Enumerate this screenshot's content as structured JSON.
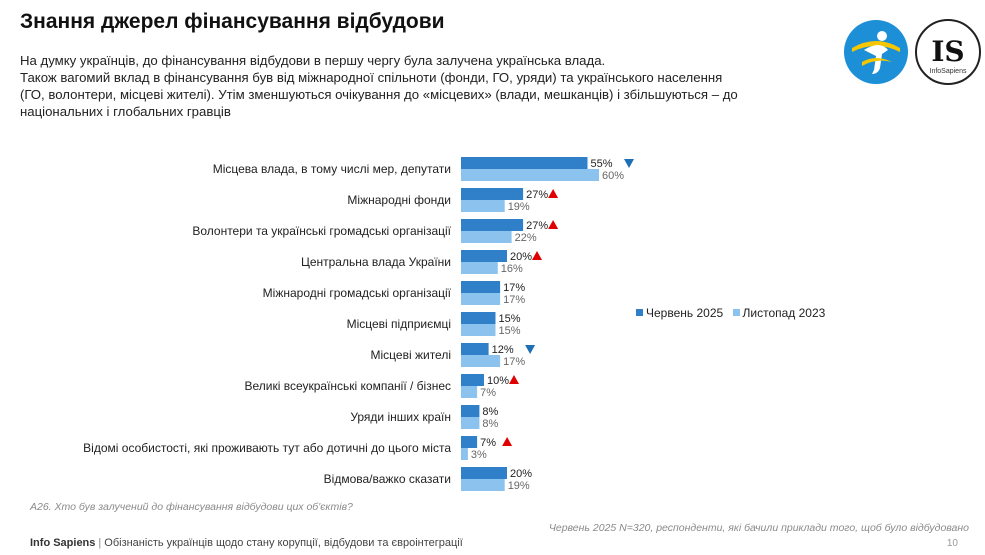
{
  "title": "Знання джерел фінансування відбудови",
  "subtitle_lines": [
    "На думку українців, до фінансування відбудови в першу чергу була залучена українська влада.",
    "Також вагомий вклад в фінансування був від міжнародної спільноти (фонди, ГО, уряди) та українського населення",
    "(ГО, волонтери, місцеві жителі). Утім зменшуються очікування до «місцевих» (влади, мешканців) і збільшуються – до",
    "національних і глобальних гравців"
  ],
  "logos": {
    "logo1_icon": "figure-in-circle-logo-icon",
    "logo2_text": "IS",
    "logo2_subtext": "InfoSapiens"
  },
  "chart_data": {
    "type": "bar",
    "orientation": "horizontal",
    "categories": [
      "Місцева влада, в тому числі мер, депутати",
      "Міжнародні фонди",
      "Волонтери та українські громадські організації",
      "Центральна влада України",
      "Міжнародні громадські організації",
      "Місцеві підприємці",
      "Місцеві жителі",
      "Великі всеукраїнські компанії / бізнес",
      "Уряди інших країн",
      "Відомі особистості, які проживають тут або дотичні до цього міста",
      "Відмова/важко сказати"
    ],
    "series": [
      {
        "name": "Червень 2025",
        "color": "#2f80c8",
        "values": [
          55,
          27,
          27,
          20,
          17,
          15,
          12,
          10,
          8,
          7,
          20
        ]
      },
      {
        "name": "Листопад 2023",
        "color": "#8cc3ee",
        "values": [
          60,
          19,
          22,
          16,
          17,
          15,
          17,
          7,
          8,
          3,
          19
        ]
      }
    ],
    "value_suffix": "%",
    "change_markers": [
      "down",
      "up",
      "up",
      "up",
      "",
      "",
      "down",
      "up",
      "",
      "up",
      ""
    ],
    "change_marker_colors": {
      "up": "#e00000",
      "down": "#1f6fb5"
    },
    "xlim": [
      0,
      100
    ],
    "legend_position": "right",
    "grid": false
  },
  "question": "А26. Хто був залучений до фінансування відбудови цих об'єктів?",
  "note": "Червень 2025 N=320, респонденти, які бачили приклади того, щоб було відбудовано",
  "footer": {
    "brand": "Info Sapiens",
    "separator": "|",
    "text": "Обізнаність українців щодо стану корупції, відбудови та євроінтеграції"
  },
  "page_number": "10"
}
